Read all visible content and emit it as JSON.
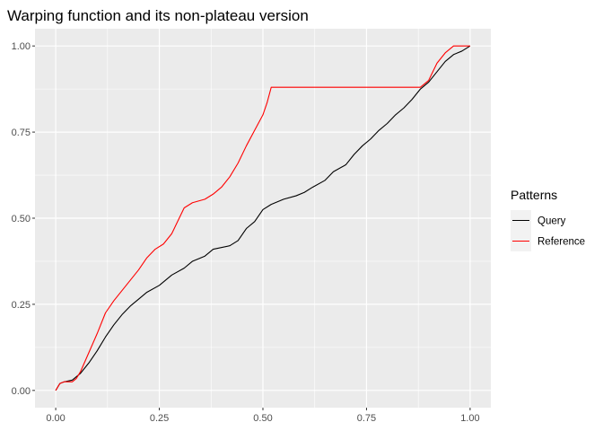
{
  "chart_data": {
    "type": "line",
    "title": "Warping function and its non-plateau version",
    "xlabel": "",
    "ylabel": "",
    "xlim": [
      -0.05,
      1.05
    ],
    "ylim": [
      -0.05,
      1.05
    ],
    "x_ticks": [
      0.0,
      0.25,
      0.5,
      0.75,
      1.0
    ],
    "x_tick_labels": [
      "0.00",
      "0.25",
      "0.50",
      "0.75",
      "1.00"
    ],
    "y_ticks": [
      0.0,
      0.25,
      0.5,
      0.75,
      1.0
    ],
    "y_tick_labels": [
      "0.00",
      "0.25",
      "0.50",
      "0.75",
      "1.00"
    ],
    "grid": true,
    "panel_background": "#ebebeb",
    "legend": {
      "title": "Patterns",
      "position": "right"
    },
    "series": [
      {
        "name": "Query",
        "color": "#000000",
        "points": [
          [
            0.0,
            0.0
          ],
          [
            0.01,
            0.02
          ],
          [
            0.02,
            0.025
          ],
          [
            0.04,
            0.03
          ],
          [
            0.06,
            0.05
          ],
          [
            0.08,
            0.08
          ],
          [
            0.1,
            0.115
          ],
          [
            0.12,
            0.155
          ],
          [
            0.14,
            0.19
          ],
          [
            0.16,
            0.22
          ],
          [
            0.18,
            0.245
          ],
          [
            0.2,
            0.265
          ],
          [
            0.22,
            0.285
          ],
          [
            0.25,
            0.305
          ],
          [
            0.28,
            0.335
          ],
          [
            0.31,
            0.355
          ],
          [
            0.33,
            0.375
          ],
          [
            0.36,
            0.39
          ],
          [
            0.38,
            0.41
          ],
          [
            0.42,
            0.42
          ],
          [
            0.44,
            0.435
          ],
          [
            0.46,
            0.47
          ],
          [
            0.48,
            0.49
          ],
          [
            0.5,
            0.525
          ],
          [
            0.52,
            0.54
          ],
          [
            0.55,
            0.555
          ],
          [
            0.58,
            0.565
          ],
          [
            0.6,
            0.575
          ],
          [
            0.62,
            0.59
          ],
          [
            0.65,
            0.61
          ],
          [
            0.67,
            0.635
          ],
          [
            0.7,
            0.655
          ],
          [
            0.72,
            0.685
          ],
          [
            0.74,
            0.71
          ],
          [
            0.76,
            0.73
          ],
          [
            0.78,
            0.755
          ],
          [
            0.8,
            0.775
          ],
          [
            0.82,
            0.8
          ],
          [
            0.84,
            0.82
          ],
          [
            0.86,
            0.845
          ],
          [
            0.88,
            0.875
          ],
          [
            0.9,
            0.895
          ],
          [
            0.92,
            0.925
          ],
          [
            0.94,
            0.955
          ],
          [
            0.96,
            0.975
          ],
          [
            0.98,
            0.985
          ],
          [
            1.0,
            1.0
          ]
        ]
      },
      {
        "name": "Reference",
        "color": "#ff0000",
        "points": [
          [
            0.0,
            0.0
          ],
          [
            0.01,
            0.02
          ],
          [
            0.02,
            0.025
          ],
          [
            0.04,
            0.025
          ],
          [
            0.05,
            0.035
          ],
          [
            0.06,
            0.055
          ],
          [
            0.08,
            0.11
          ],
          [
            0.1,
            0.165
          ],
          [
            0.12,
            0.225
          ],
          [
            0.14,
            0.26
          ],
          [
            0.16,
            0.29
          ],
          [
            0.18,
            0.32
          ],
          [
            0.2,
            0.35
          ],
          [
            0.22,
            0.385
          ],
          [
            0.24,
            0.41
          ],
          [
            0.26,
            0.425
          ],
          [
            0.28,
            0.455
          ],
          [
            0.29,
            0.48
          ],
          [
            0.31,
            0.53
          ],
          [
            0.33,
            0.545
          ],
          [
            0.36,
            0.555
          ],
          [
            0.38,
            0.57
          ],
          [
            0.4,
            0.59
          ],
          [
            0.42,
            0.62
          ],
          [
            0.44,
            0.66
          ],
          [
            0.46,
            0.71
          ],
          [
            0.48,
            0.755
          ],
          [
            0.5,
            0.8
          ],
          [
            0.51,
            0.835
          ],
          [
            0.52,
            0.88
          ],
          [
            0.7,
            0.88
          ],
          [
            0.88,
            0.88
          ],
          [
            0.9,
            0.9
          ],
          [
            0.92,
            0.95
          ],
          [
            0.94,
            0.98
          ],
          [
            0.96,
            1.0
          ],
          [
            0.98,
            1.0
          ],
          [
            1.0,
            1.0
          ]
        ]
      }
    ]
  }
}
